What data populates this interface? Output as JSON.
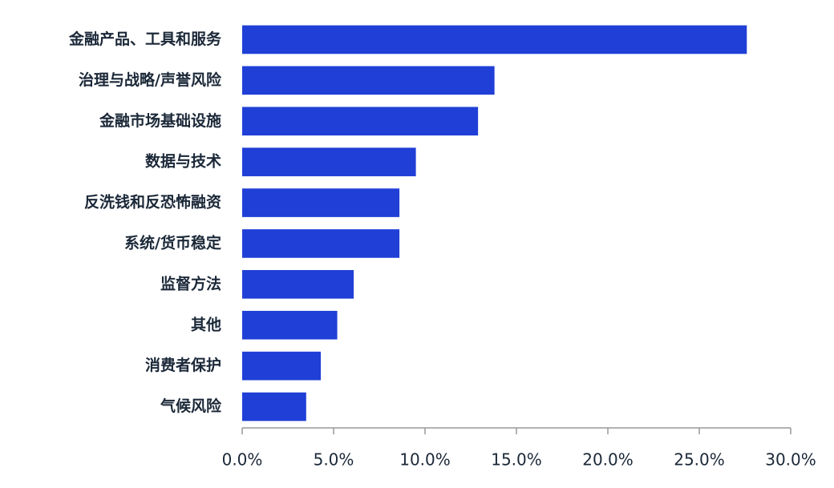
{
  "chart_data": {
    "type": "bar",
    "orientation": "horizontal",
    "categories": [
      "金融产品、工具和服务",
      "治理与战略/声誉风险",
      "金融市场基础设施",
      "数据与技术",
      "反洗钱和反恐怖融资",
      "系统/货币稳定",
      "监督方法",
      "其他",
      "消费者保护",
      "气候风险"
    ],
    "values": [
      27.6,
      13.8,
      12.9,
      9.5,
      8.6,
      8.6,
      6.1,
      5.2,
      4.3,
      3.5
    ],
    "color": "#1f3fd6",
    "xlim": [
      0,
      30
    ],
    "xticks": [
      {
        "value": 0,
        "label": "0.0%"
      },
      {
        "value": 5,
        "label": "5.0%"
      },
      {
        "value": 10,
        "label": "10.0%"
      },
      {
        "value": 15,
        "label": "15.0%"
      },
      {
        "value": 20,
        "label": "20.0%"
      },
      {
        "value": 25,
        "label": "25.0%"
      },
      {
        "value": 30,
        "label": "30.0%"
      }
    ]
  }
}
